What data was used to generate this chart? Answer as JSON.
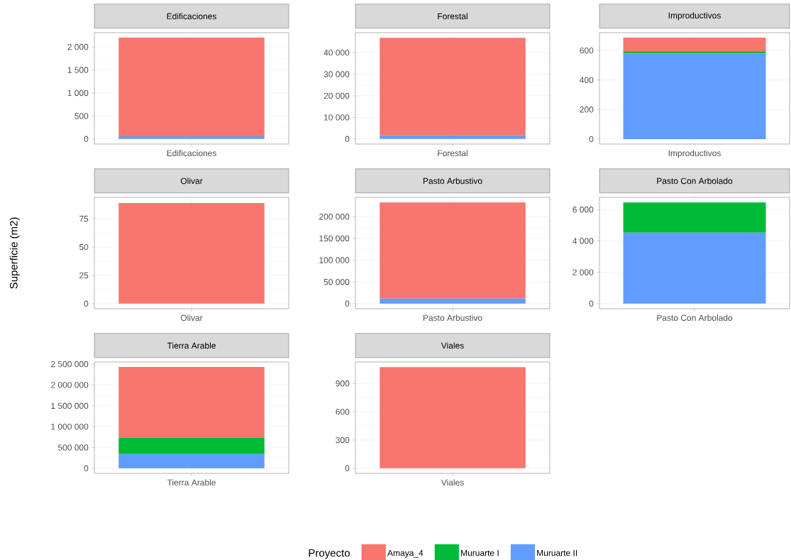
{
  "chart_data": [
    {
      "type": "bar",
      "stacked": true,
      "grid": true,
      "title": "Edificaciones",
      "categories": [
        "Edificaciones"
      ],
      "ylim": [
        -110,
        2310
      ],
      "yticks": [
        0,
        500,
        {
          "value": 1000,
          "label": "1 000"
        },
        {
          "value": 1500,
          "label": "1 500"
        },
        {
          "value": 2000,
          "label": "2 000"
        }
      ],
      "series": [
        {
          "color": "#619cff",
          "values": [
            60
          ]
        },
        {
          "color": "#00ba38",
          "values": [
            null
          ]
        },
        {
          "color": "#f8766d",
          "values": [
            2140
          ]
        }
      ]
    },
    {
      "type": "bar",
      "stacked": true,
      "grid": true,
      "title": "Forestal",
      "categories": [
        "Forestal"
      ],
      "ylim": [
        -2350,
        49250
      ],
      "yticks": [
        0,
        {
          "value": 10000,
          "label": "10 000"
        },
        {
          "value": 20000,
          "label": "20 000"
        },
        {
          "value": 30000,
          "label": "30 000"
        },
        {
          "value": 40000,
          "label": "40 000"
        }
      ],
      "series": [
        {
          "color": "#619cff",
          "values": [
            1650
          ]
        },
        {
          "color": "#00ba38",
          "values": [
            null
          ]
        },
        {
          "color": "#f8766d",
          "values": [
            45250
          ]
        }
      ]
    },
    {
      "type": "bar",
      "stacked": true,
      "grid": true,
      "title": "Improductivos",
      "categories": [
        "Improductivos"
      ],
      "ylim": [
        -34,
        721
      ],
      "yticks": [
        0,
        200,
        400,
        600
      ],
      "series": [
        {
          "color": "#619cff",
          "values": [
            580
          ]
        },
        {
          "color": "#00ba38",
          "values": [
            15
          ]
        },
        {
          "color": "#f8766d",
          "values": [
            92
          ]
        }
      ]
    },
    {
      "type": "bar",
      "stacked": true,
      "grid": true,
      "title": "Olivar",
      "categories": [
        "Olivar"
      ],
      "ylabel": "Superficie (m2)",
      "ylim": [
        -4.5,
        94
      ],
      "yticks": [
        0,
        25,
        50,
        75
      ],
      "series": [
        {
          "color": "#619cff",
          "values": [
            null
          ]
        },
        {
          "color": "#00ba38",
          "values": [
            null
          ]
        },
        {
          "color": "#f8766d",
          "values": [
            89
          ]
        }
      ]
    },
    {
      "type": "bar",
      "stacked": true,
      "grid": true,
      "title": "Pasto Arbustivo",
      "categories": [
        "Pasto Arbustivo"
      ],
      "ylim": [
        -11650,
        244650
      ],
      "yticks": [
        0,
        {
          "value": 50000,
          "label": "50 000"
        },
        {
          "value": 100000,
          "label": "100 000"
        },
        {
          "value": 150000,
          "label": "150 000"
        },
        {
          "value": 200000,
          "label": "200 000"
        }
      ],
      "series": [
        {
          "color": "#619cff",
          "values": [
            11500
          ]
        },
        {
          "color": "#00ba38",
          "values": [
            null
          ]
        },
        {
          "color": "#f8766d",
          "values": [
            221500
          ]
        }
      ]
    },
    {
      "type": "bar",
      "stacked": true,
      "grid": true,
      "title": "Pasto Con Arbolado",
      "categories": [
        "Pasto Con Arbolado"
      ],
      "ylim": [
        -323,
        6783
      ],
      "yticks": [
        0,
        {
          "value": 2000,
          "label": "2 000"
        },
        {
          "value": 4000,
          "label": "4 000"
        },
        {
          "value": 6000,
          "label": "6 000"
        }
      ],
      "series": [
        {
          "color": "#619cff",
          "values": [
            4535
          ]
        },
        {
          "color": "#00ba38",
          "values": [
            1925
          ]
        },
        {
          "color": "#f8766d",
          "values": [
            null
          ]
        }
      ]
    },
    {
      "type": "bar",
      "stacked": true,
      "grid": true,
      "title": "Tierra Arable",
      "categories": [
        "Tierra Arable"
      ],
      "ylim": [
        -121500,
        2552000
      ],
      "yticks": [
        0,
        {
          "value": 500000,
          "label": "500 000"
        },
        {
          "value": 1000000,
          "label": "1 000 000"
        },
        {
          "value": 1500000,
          "label": "1 500 000"
        },
        {
          "value": 2000000,
          "label": "2 000 000"
        },
        {
          "value": 2500000,
          "label": "2 500 000"
        }
      ],
      "series": [
        {
          "color": "#619cff",
          "values": [
            342000
          ]
        },
        {
          "color": "#00ba38",
          "values": [
            394000
          ]
        },
        {
          "color": "#f8766d",
          "values": [
            1695000
          ]
        }
      ]
    },
    {
      "type": "bar",
      "stacked": true,
      "grid": true,
      "title": "Viales",
      "categories": [
        "Viales"
      ],
      "ylim": [
        -54,
        1128
      ],
      "legend": "bottom",
      "legend_title": "Proyecto",
      "yticks": [
        0,
        300,
        600,
        900
      ],
      "series": [
        {
          "name": "Muruarte II",
          "color": "#619cff",
          "values": [
            null
          ]
        },
        {
          "name": "Muruarte I",
          "color": "#00ba38",
          "values": [
            null
          ]
        },
        {
          "name": "Amaya_4",
          "color": "#f8766d",
          "values": [
            1074
          ]
        }
      ]
    }
  ]
}
